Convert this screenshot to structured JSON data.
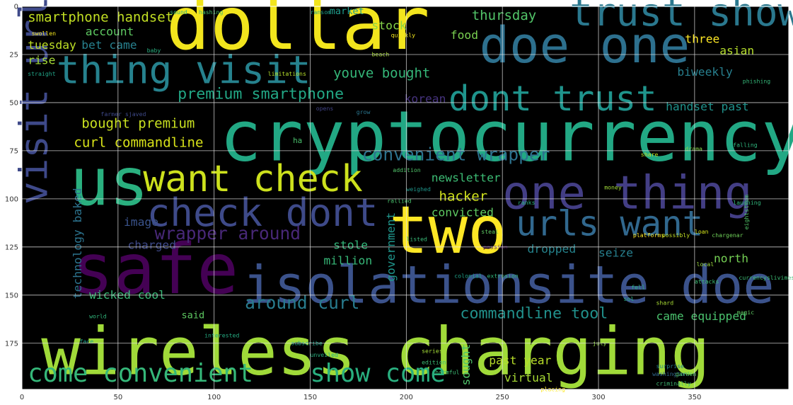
{
  "chart_data": {
    "type": "wordcloud",
    "title": "",
    "xlabel": "",
    "ylabel": "",
    "xlim": [
      0,
      399
    ],
    "ylim": [
      199,
      0
    ],
    "grid": true,
    "x_ticks": [
      0,
      50,
      100,
      150,
      200,
      250,
      300,
      350
    ],
    "y_ticks": [
      0,
      25,
      50,
      75,
      100,
      125,
      150,
      175
    ],
    "colors": {
      "background": "#000000",
      "frame": "#ffffff",
      "grid": "#e6e6e6"
    },
    "words": [
      {
        "text": "dollar",
        "x": 75,
        "y": 22,
        "size": 38,
        "color": "#f2e51d",
        "orient": "h"
      },
      {
        "text": "doe one",
        "x": 238,
        "y": 29,
        "size": 26,
        "color": "#2d708e",
        "orient": "h"
      },
      {
        "text": "trust show",
        "x": 285,
        "y": 10,
        "size": 20,
        "color": "#2a788e",
        "orient": "h"
      },
      {
        "text": "thing visit",
        "x": 18,
        "y": 40,
        "size": 20,
        "color": "#26828e",
        "orient": "h"
      },
      {
        "text": "dont trust",
        "x": 222,
        "y": 54,
        "size": 18,
        "color": "#1f948c",
        "orient": "h"
      },
      {
        "text": "cryptocurrency",
        "x": 103,
        "y": 80,
        "size": 36,
        "color": "#22a884",
        "orient": "h"
      },
      {
        "text": "us",
        "x": 25,
        "y": 103,
        "size": 34,
        "color": "#2ab07f",
        "orient": "h"
      },
      {
        "text": "want check",
        "x": 63,
        "y": 96,
        "size": 19,
        "color": "#cde11d",
        "orient": "h"
      },
      {
        "text": "check dont",
        "x": 65,
        "y": 114,
        "size": 20,
        "color": "#3e4a89",
        "orient": "h"
      },
      {
        "text": "one thing",
        "x": 250,
        "y": 105,
        "size": 24,
        "color": "#433e85",
        "orient": "h"
      },
      {
        "text": "two",
        "x": 191,
        "y": 128,
        "size": 34,
        "color": "#fde725",
        "orient": "h"
      },
      {
        "text": "urls want",
        "x": 257,
        "y": 119,
        "size": 18,
        "color": "#31688e",
        "orient": "h"
      },
      {
        "text": "safe",
        "x": 26,
        "y": 149,
        "size": 36,
        "color": "#440154",
        "orient": "h"
      },
      {
        "text": "isolationsite doe",
        "x": 115,
        "y": 154,
        "size": 27,
        "color": "#3b528b",
        "orient": "h"
      },
      {
        "text": "visit urls",
        "x": 13,
        "y": 103,
        "size": 20,
        "color": "#3e4989",
        "orient": "v"
      },
      {
        "text": "wireless charging",
        "x": 10,
        "y": 191,
        "size": 34,
        "color": "#a0da39",
        "orient": "h"
      },
      {
        "text": "come convenient",
        "x": 3,
        "y": 195,
        "size": 13,
        "color": "#35b779",
        "orient": "h"
      },
      {
        "text": "show come",
        "x": 150,
        "y": 195,
        "size": 13,
        "color": "#29af7f",
        "orient": "h"
      },
      {
        "text": "convenient wrapper",
        "x": 177,
        "y": 80,
        "size": 9,
        "color": "#2c728e",
        "orient": "h"
      },
      {
        "text": "wrapper around",
        "x": 69,
        "y": 121,
        "size": 9,
        "color": "#482878",
        "orient": "h"
      },
      {
        "text": "around curl",
        "x": 116,
        "y": 157,
        "size": 9,
        "color": "#287c8e",
        "orient": "h"
      },
      {
        "text": "commandline tool",
        "x": 228,
        "y": 162,
        "size": 8,
        "color": "#21918c",
        "orient": "h"
      },
      {
        "text": "smartphone handset",
        "x": 3,
        "y": 8,
        "size": 7,
        "color": "#c2df23",
        "orient": "h"
      },
      {
        "text": "premium smartphone",
        "x": 81,
        "y": 48,
        "size": 8,
        "color": "#22a785",
        "orient": "h"
      },
      {
        "text": "bought premium",
        "x": 31,
        "y": 63,
        "size": 7,
        "color": "#c8e020",
        "orient": "h"
      },
      {
        "text": "curl commandline",
        "x": 27,
        "y": 73,
        "size": 7,
        "color": "#d8e219",
        "orient": "h"
      },
      {
        "text": "youve bought",
        "x": 162,
        "y": 37,
        "size": 7,
        "color": "#35b779",
        "orient": "h"
      },
      {
        "text": "thursday",
        "x": 234,
        "y": 7,
        "size": 7,
        "color": "#52c569",
        "orient": "h"
      },
      {
        "text": "account",
        "x": 33,
        "y": 15,
        "size": 6,
        "color": "#5ec962",
        "orient": "h"
      },
      {
        "text": "tuesday",
        "x": 3,
        "y": 22,
        "size": 6,
        "color": "#bddf26",
        "orient": "h"
      },
      {
        "text": "bet came",
        "x": 31,
        "y": 22,
        "size": 6,
        "color": "#27808e",
        "orient": "h"
      },
      {
        "text": "rise",
        "x": 3,
        "y": 30,
        "size": 6,
        "color": "#a5db36",
        "orient": "h"
      },
      {
        "text": "food",
        "x": 223,
        "y": 17,
        "size": 6,
        "color": "#7ad151",
        "orient": "h"
      },
      {
        "text": "stock",
        "x": 182,
        "y": 12,
        "size": 6,
        "color": "#86d549",
        "orient": "h"
      },
      {
        "text": "market",
        "x": 160,
        "y": 4,
        "size": 5,
        "color": "#1f9a8a",
        "orient": "h"
      },
      {
        "text": "korean",
        "x": 199,
        "y": 50,
        "size": 6,
        "color": "#46337f",
        "orient": "h"
      },
      {
        "text": "three",
        "x": 345,
        "y": 19,
        "size": 6,
        "color": "#fde725",
        "orient": "h"
      },
      {
        "text": "asian",
        "x": 363,
        "y": 25,
        "size": 6,
        "color": "#b5de2b",
        "orient": "h"
      },
      {
        "text": "biweekly",
        "x": 341,
        "y": 36,
        "size": 6,
        "color": "#277f8e",
        "orient": "h"
      },
      {
        "text": "handset past",
        "x": 335,
        "y": 54,
        "size": 6,
        "color": "#20928c",
        "orient": "h"
      },
      {
        "text": "newsletter",
        "x": 213,
        "y": 91,
        "size": 6,
        "color": "#3dbc74",
        "orient": "h"
      },
      {
        "text": "hacker",
        "x": 217,
        "y": 101,
        "size": 7,
        "color": "#d0e11c",
        "orient": "h"
      },
      {
        "text": "convicted",
        "x": 213,
        "y": 109,
        "size": 6,
        "color": "#5ec962",
        "orient": "h"
      },
      {
        "text": "government",
        "x": 194,
        "y": 143,
        "size": 6,
        "color": "#1f958b",
        "orient": "v"
      },
      {
        "text": "stole",
        "x": 162,
        "y": 126,
        "size": 6,
        "color": "#32b67a",
        "orient": "h"
      },
      {
        "text": "million",
        "x": 157,
        "y": 134,
        "size": 6,
        "color": "#37b878",
        "orient": "h"
      },
      {
        "text": "image",
        "x": 53,
        "y": 114,
        "size": 6,
        "color": "#3a538b",
        "orient": "h"
      },
      {
        "text": "charged",
        "x": 55,
        "y": 126,
        "size": 6,
        "color": "#3e4989",
        "orient": "h"
      },
      {
        "text": "technology baked",
        "x": 31,
        "y": 152,
        "size": 6,
        "color": "#2c738e",
        "orient": "v"
      },
      {
        "text": "wicked cool",
        "x": 35,
        "y": 152,
        "size": 6,
        "color": "#38b977",
        "orient": "h"
      },
      {
        "text": "said",
        "x": 83,
        "y": 162,
        "size": 5,
        "color": "#5ec962",
        "orient": "h"
      },
      {
        "text": "dropped",
        "x": 263,
        "y": 128,
        "size": 6,
        "color": "#25848e",
        "orient": "h"
      },
      {
        "text": "seize",
        "x": 300,
        "y": 130,
        "size": 6,
        "color": "#277f8e",
        "orient": "h"
      },
      {
        "text": "north",
        "x": 360,
        "y": 133,
        "size": 6,
        "color": "#75d054",
        "orient": "h"
      },
      {
        "text": "came equipped",
        "x": 330,
        "y": 163,
        "size": 6,
        "color": "#4ac16d",
        "orient": "h"
      },
      {
        "text": "past year",
        "x": 243,
        "y": 186,
        "size": 6,
        "color": "#b8de29",
        "orient": "h"
      },
      {
        "text": "sought",
        "x": 233,
        "y": 197,
        "size": 6,
        "color": "#50c46a",
        "orient": "v"
      },
      {
        "text": "virtual",
        "x": 251,
        "y": 195,
        "size": 6,
        "color": "#a8db34",
        "orient": "h"
      },
      {
        "text": "chargenar",
        "x": 359,
        "y": 120,
        "size": 3,
        "color": "#6ece58",
        "orient": "h"
      },
      {
        "text": "falling",
        "x": 370,
        "y": 73,
        "size": 3,
        "color": "#2fb47c",
        "orient": "h"
      },
      {
        "text": "ha",
        "x": 141,
        "y": 71,
        "size": 4,
        "color": "#4ac16d",
        "orient": "h"
      },
      {
        "text": "laughing",
        "x": 370,
        "y": 103,
        "size": 3,
        "color": "#31b57b",
        "orient": "h"
      },
      {
        "text": "phishing",
        "x": 375,
        "y": 40,
        "size": 3,
        "color": "#35b779",
        "orient": "h"
      },
      {
        "text": "surprise",
        "x": 330,
        "y": 188,
        "size": 3,
        "color": "#26828e",
        "orient": "h"
      },
      {
        "text": "washington",
        "x": 328,
        "y": 192,
        "size": 3,
        "color": "#31688e",
        "orient": "h"
      },
      {
        "text": "criminally",
        "x": 330,
        "y": 197,
        "size": 3,
        "color": "#3fbc73",
        "orient": "h"
      },
      {
        "text": "july",
        "x": 297,
        "y": 176,
        "size": 3,
        "color": "#90d743",
        "orient": "h"
      },
      {
        "text": "garden",
        "x": 340,
        "y": 192,
        "size": 3,
        "color": "#52c569",
        "orient": "h"
      },
      {
        "text": "subscribe",
        "x": 140,
        "y": 176,
        "size": 3,
        "color": "#1fa188",
        "orient": "h"
      },
      {
        "text": "series",
        "x": 208,
        "y": 180,
        "size": 3,
        "color": "#a2da37",
        "orient": "h"
      },
      {
        "text": "edition",
        "x": 208,
        "y": 186,
        "size": 3,
        "color": "#3dbc74",
        "orient": "h"
      },
      {
        "text": "placing",
        "x": 270,
        "y": 200,
        "size": 3,
        "color": "#fde725",
        "orient": "h"
      },
      {
        "text": "money",
        "x": 303,
        "y": 95,
        "size": 3,
        "color": "#a0da39",
        "orient": "h"
      },
      {
        "text": "share",
        "x": 322,
        "y": 78,
        "size": 3,
        "color": "#c0df25",
        "orient": "h"
      },
      {
        "text": "drama",
        "x": 345,
        "y": 75,
        "size": 3,
        "color": "#86d549",
        "orient": "h"
      },
      {
        "text": "loan",
        "x": 350,
        "y": 118,
        "size": 3,
        "color": "#d2e21b",
        "orient": "h"
      },
      {
        "text": "local",
        "x": 351,
        "y": 135,
        "size": 3,
        "color": "#9bd93c",
        "orient": "h"
      },
      {
        "text": "farmer sjaved",
        "x": 41,
        "y": 57,
        "size": 3,
        "color": "#3e4989",
        "orient": "h"
      },
      {
        "text": "swollen",
        "x": 5,
        "y": 15,
        "size": 3,
        "color": "#f4e61e",
        "orient": "h"
      },
      {
        "text": "straight",
        "x": 3,
        "y": 36,
        "size": 3,
        "color": "#20a386",
        "orient": "h"
      },
      {
        "text": "baby",
        "x": 65,
        "y": 24,
        "size": 3,
        "color": "#29af7f",
        "orient": "h"
      },
      {
        "text": "sound",
        "x": 77,
        "y": 4,
        "size": 3,
        "color": "#31b57b",
        "orient": "h"
      },
      {
        "text": "hashing",
        "x": 92,
        "y": 4,
        "size": 3,
        "color": "#4ac16d",
        "orient": "h"
      },
      {
        "text": "ransom",
        "x": 150,
        "y": 4,
        "size": 3,
        "color": "#1f9f88",
        "orient": "h"
      },
      {
        "text": "limitations",
        "x": 128,
        "y": 36,
        "size": 3,
        "color": "#b5de2b",
        "orient": "h"
      },
      {
        "text": "beach",
        "x": 182,
        "y": 26,
        "size": 3,
        "color": "#a8db34",
        "orient": "h"
      },
      {
        "text": "quickly",
        "x": 192,
        "y": 16,
        "size": 3,
        "color": "#f1e51d",
        "orient": "h"
      },
      {
        "text": "opens",
        "x": 153,
        "y": 54,
        "size": 3,
        "color": "#414487",
        "orient": "h"
      },
      {
        "text": "grow",
        "x": 174,
        "y": 56,
        "size": 3,
        "color": "#2a768e",
        "orient": "h"
      },
      {
        "text": "addition",
        "x": 193,
        "y": 86,
        "size": 3,
        "color": "#50c46a",
        "orient": "h"
      },
      {
        "text": "weighed",
        "x": 200,
        "y": 96,
        "size": 3,
        "color": "#1f968b",
        "orient": "h"
      },
      {
        "text": "rallied",
        "x": 190,
        "y": 102,
        "size": 3,
        "color": "#4ac16d",
        "orient": "h"
      },
      {
        "text": "ranks",
        "x": 258,
        "y": 103,
        "size": 3,
        "color": "#2ab07f",
        "orient": "h"
      },
      {
        "text": "steal",
        "x": 239,
        "y": 118,
        "size": 3,
        "color": "#5ec962",
        "orient": "h"
      },
      {
        "text": "listed",
        "x": 200,
        "y": 122,
        "size": 3,
        "color": "#38b977",
        "orient": "h"
      },
      {
        "text": "passion",
        "x": 240,
        "y": 126,
        "size": 3,
        "color": "#440154",
        "orient": "h"
      },
      {
        "text": "fell",
        "x": 317,
        "y": 147,
        "size": 3,
        "color": "#2db27d",
        "orient": "h"
      },
      {
        "text": "attacks",
        "x": 350,
        "y": 144,
        "size": 3,
        "color": "#3dbc74",
        "orient": "h"
      },
      {
        "text": "sol",
        "x": 313,
        "y": 153,
        "size": 3,
        "color": "#29af7f",
        "orient": "h"
      },
      {
        "text": "shard",
        "x": 330,
        "y": 155,
        "size": 3,
        "color": "#a8db34",
        "orient": "h"
      },
      {
        "text": "magic",
        "x": 372,
        "y": 160,
        "size": 3,
        "color": "#5ec962",
        "orient": "h"
      },
      {
        "text": "world",
        "x": 35,
        "y": 162,
        "size": 3,
        "color": "#31b57b",
        "orient": "h"
      },
      {
        "text": "face",
        "x": 30,
        "y": 175,
        "size": 3,
        "color": "#1fa188",
        "orient": "h"
      },
      {
        "text": "interested",
        "x": 95,
        "y": 172,
        "size": 3,
        "color": "#25ab82",
        "orient": "h"
      },
      {
        "text": "unveiled",
        "x": 150,
        "y": 182,
        "size": 3,
        "color": "#2ab07f",
        "orient": "h"
      },
      {
        "text": "harmful",
        "x": 215,
        "y": 191,
        "size": 3,
        "color": "#3dbc74",
        "orient": "h"
      },
      {
        "text": "colonial",
        "x": 225,
        "y": 141,
        "size": 3,
        "color": "#1fa188",
        "orient": "h"
      },
      {
        "text": "extrusion",
        "x": 242,
        "y": 141,
        "size": 3,
        "color": "#31b57b",
        "orient": "h"
      },
      {
        "text": "platforms",
        "x": 318,
        "y": 120,
        "size": 3,
        "color": "#fde725",
        "orient": "h"
      },
      {
        "text": "possibly",
        "x": 333,
        "y": 120,
        "size": 3,
        "color": "#c0df25",
        "orient": "h"
      },
      {
        "text": "currencyslivimes",
        "x": 373,
        "y": 142,
        "size": 3,
        "color": "#3dbc74",
        "orient": "h"
      },
      {
        "text": "eightstrom",
        "x": 378,
        "y": 116,
        "size": 3,
        "color": "#52c569",
        "orient": "v"
      }
    ]
  }
}
